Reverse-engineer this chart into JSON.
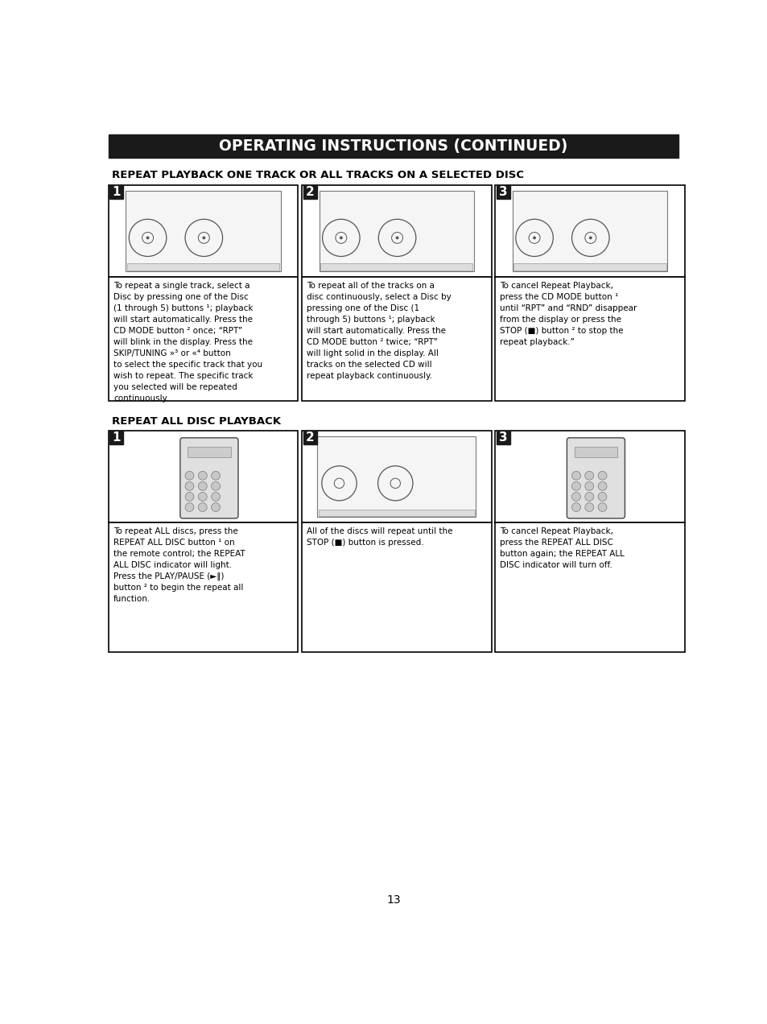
{
  "title": "OPERATING INSTRUCTIONS (CONTINUED)",
  "title_bg": "#1a1a1a",
  "title_color": "#ffffff",
  "page_bg": "#ffffff",
  "section1_title": "REPEAT PLAYBACK ONE TRACK OR ALL TRACKS ON A SELECTED DISC",
  "section2_title": "REPEAT ALL DISC PLAYBACK",
  "page_number": "13",
  "box_border_color": "#000000",
  "text_color": "#000000",
  "step_bg": "#1a1a1a",
  "step_color": "#ffffff",
  "cell1_text": "To repeat a single track, select a\nDisc by pressing one of the Disc\n(1 through 5) buttons ¹; playback\nwill start automatically. Press the\nCD MODE button ² once; “RPT”\nwill blink in the display. Press the\nSKIP/TUNING »³ or «⁴ button\nto select the specific track that you\nwish to repeat. The specific track\nyou selected will be repeated\ncontinuously.",
  "cell2_text": "To repeat all of the tracks on a\ndisc continuously, select a Disc by\npressing one of the Disc (1\nthrough 5) buttons ¹; playback\nwill start automatically. Press the\nCD MODE button ² twice; “RPT”\nwill light solid in the display. All\ntracks on the selected CD will\nrepeat playback continuously.",
  "cell3_text": "To cancel Repeat Playback,\npress the CD MODE button ¹\nuntil “RPT” and “RND” disappear\nfrom the display or press the\nSTOP (■) button ² to stop the\nrepeat playback.”",
  "cell4_text": "To repeat ALL discs, press the\nREPEAT ALL DISC button ¹ on\nthe remote control; the REPEAT\nALL DISC indicator will light.\nPress the PLAY/PAUSE (►‖)\nbutton ² to begin the repeat all\nfunction.",
  "cell5_text": "All of the discs will repeat until the\nSTOP (■) button is pressed.",
  "cell6_text": "To cancel Repeat Playback,\npress the REPEAT ALL DISC\nbutton again; the REPEAT ALL\nDISC indicator will turn off."
}
